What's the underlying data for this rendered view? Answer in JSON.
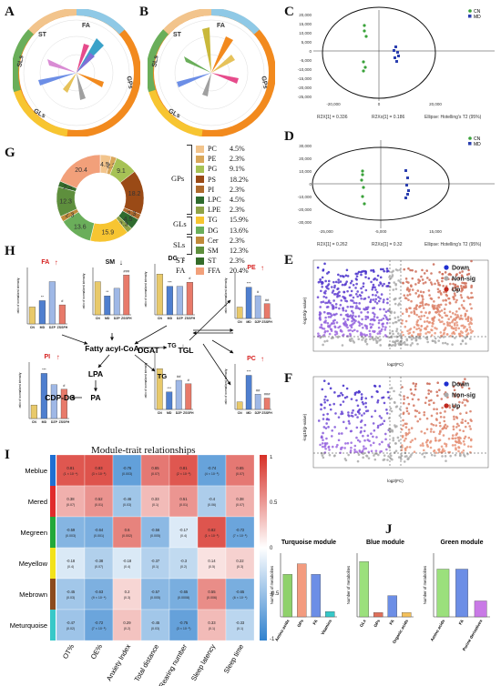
{
  "panels": {
    "A": "A",
    "B": "B",
    "C": "C",
    "D": "D",
    "E": "E",
    "F": "F",
    "G": "G",
    "H": "H",
    "I": "I",
    "J": "J"
  },
  "rose_labels": {
    "fa": "FA",
    "st": "ST",
    "sls": "SLs",
    "gps": "GPs",
    "gls": "GLs"
  },
  "pca_C": {
    "legend": [
      "CN",
      "MD"
    ],
    "footer": [
      "R2X[1] = 0.336",
      "R2Xo[1] = 0.186",
      "Ellipse: Hotelling's T2 (95%)"
    ],
    "yticks": [
      "20,000",
      "15,000",
      "10,000",
      "5,000",
      "0",
      "-5,000",
      "-10,000",
      "-15,000",
      "-20,000",
      "-25,000"
    ],
    "xticks": [
      "-20,000",
      "0",
      "20,000"
    ]
  },
  "pca_D": {
    "legend": [
      "CN",
      "MD"
    ],
    "footer": [
      "R2X[1] = 0.262",
      "R2Xo[1] = 0.32",
      "Ellipse: Hotelling's T2 (95%)"
    ],
    "yticks": [
      "30,000",
      "20,000",
      "10,000",
      "0",
      "-10,000",
      "-20,000",
      "-30,000"
    ],
    "xticks": [
      "-25,000",
      "-5,000",
      "15,000"
    ]
  },
  "volcano": {
    "legend": [
      "Down",
      "Non-sig",
      "Up"
    ],
    "xlabel": "log2(FC)",
    "ylabel": "-log10(p-value)"
  },
  "donut": {
    "values": [
      4.5,
      2.3,
      9.1,
      18.2,
      2.3,
      4.5,
      2.3,
      15.9,
      13.6,
      2.3,
      12.3,
      2.3,
      20.4
    ],
    "labels_shown": [
      "4.5",
      "2.3",
      "9.1",
      "18.2",
      "2.3",
      "4.5",
      "2.3",
      "15.9",
      "13.6",
      "2.3",
      "12.3",
      "2.3",
      "20.4"
    ],
    "colors": [
      "#f2c48c",
      "#d9a75a",
      "#a6c255",
      "#9a4a16",
      "#ad6a2d",
      "#2f6b2e",
      "#8fa348",
      "#f7c531",
      "#6aae5a",
      "#c08a3a",
      "#5e8f3d",
      "#356c2a",
      "#f2a07a"
    ],
    "legend": [
      {
        "name": "PC",
        "pct": "4.5%"
      },
      {
        "name": "PE",
        "pct": "2.3%"
      },
      {
        "name": "PG",
        "pct": "9.1%"
      },
      {
        "name": "PS",
        "pct": "18.2%"
      },
      {
        "name": "PI",
        "pct": "2.3%"
      },
      {
        "name": "LPC",
        "pct": "4.5%"
      },
      {
        "name": "LPE",
        "pct": "2.3%"
      },
      {
        "name": "TG",
        "pct": "15.9%"
      },
      {
        "name": "DG",
        "pct": "13.6%"
      },
      {
        "name": "Cer",
        "pct": "2.3%"
      },
      {
        "name": "SM",
        "pct": "12.3%"
      },
      {
        "name": "ST",
        "pct": "2.3%"
      },
      {
        "name": "FFA",
        "pct": "20.4%"
      }
    ],
    "classes": [
      "GPs",
      "GLs",
      "SLs",
      "ST",
      "FA"
    ]
  },
  "pathway": {
    "groups": [
      "CN",
      "MD",
      "DZP",
      "ZSSFH"
    ],
    "group_colors": [
      "#e8c96a",
      "#4f7fcf",
      "#9fb8e6",
      "#e87a6a"
    ],
    "ylabel": "ratio of normalized intensity",
    "nodes": {
      "fatty": "Fatty acyl-CoA",
      "lpa": "LPA",
      "pa": "PA",
      "cdp": "CDP-DG",
      "dgat": "DGAT",
      "tgl": "TGL",
      "tg": "TG"
    },
    "fa": {
      "label": "FA",
      "values": [
        24,
        33,
        60,
        27
      ],
      "stars": [
        "",
        "**",
        "",
        "#"
      ],
      "ylim": [
        0,
        80
      ]
    },
    "sm": {
      "label": "SM",
      "values": [
        0.35,
        0.2,
        0.28,
        0.42
      ],
      "stars": [
        "",
        "**",
        "",
        "###"
      ],
      "ylim": [
        0,
        0.5
      ]
    },
    "dg": {
      "label": "DG",
      "values": [
        20,
        14,
        14,
        16
      ],
      "stars": [
        "",
        "***",
        "",
        "#"
      ],
      "ylim": [
        0,
        25
      ]
    },
    "pe": {
      "label": "PE",
      "values": [
        2.0,
        5.5,
        4.0,
        2.6
      ],
      "stars": [
        "",
        "***",
        "#",
        "##"
      ],
      "ylim": [
        0,
        8
      ]
    },
    "pi": {
      "label": "PI",
      "values": [
        6,
        20,
        15,
        13
      ],
      "stars": [
        "",
        "***",
        "",
        "#"
      ],
      "ylim": [
        0,
        25
      ]
    },
    "tg": {
      "label": "TG",
      "values": [
        35,
        15,
        25,
        22
      ],
      "stars": [
        "",
        "***",
        "##",
        "#"
      ],
      "ylim": [
        0,
        50
      ]
    },
    "pc": {
      "label": "PC",
      "values": [
        2,
        9,
        4,
        3
      ],
      "stars": [
        "",
        "***",
        "##",
        "###"
      ],
      "ylim": [
        0,
        12
      ]
    }
  },
  "heatmap": {
    "title": "Module-trait relationships",
    "rows": [
      "Meblue",
      "Mered",
      "Megreen",
      "Meyellow",
      "Mebrown",
      "Meturquoise"
    ],
    "row_colors": [
      "#1f6fd1",
      "#e02b2b",
      "#22a83a",
      "#f2e21a",
      "#8b4b1e",
      "#38c8c8"
    ],
    "cols": [
      "OT%",
      "OE%",
      "Anxiety Index",
      "Total distance",
      "Rearing number",
      "Sleep latency",
      "Sleep time"
    ],
    "corr": [
      [
        0.81,
        0.83,
        -0.76,
        0.65,
        0.81,
        -0.74,
        0.65
      ],
      [
        0.38,
        0.52,
        -0.46,
        0.33,
        0.51,
        -0.4,
        0.38
      ],
      [
        -0.59,
        -0.64,
        0.6,
        -0.56,
        -0.17,
        0.82,
        -0.72
      ],
      [
        -0.18,
        -0.38,
        -0.18,
        -0.37,
        -0.3,
        0.14,
        0.22
      ],
      [
        -0.45,
        -0.63,
        0.2,
        -0.57,
        -0.65,
        0.55,
        -0.65
      ],
      [
        -0.47,
        -0.72,
        0.29,
        -0.45,
        -0.75,
        0.33,
        -0.33
      ]
    ],
    "pvals": [
      [
        "(1 × 10⁻⁴)",
        "(3 × 10⁻⁵)",
        "(0.003)",
        "(0.07)",
        "(2 × 10⁻⁵)",
        "(4 × 10⁻⁶)",
        "(0.07)"
      ],
      [
        "(0.07)",
        "(0.01)",
        "(0.03)",
        "(0.1)",
        "(0.01)",
        "(0.06)",
        "(0.07)"
      ],
      [
        "(0.003)",
        "(0.001)",
        "(0.002)",
        "(0.005)",
        "(0.4)",
        "(1 × 10⁻⁶)",
        "(7 × 10⁻⁵)"
      ],
      [
        "(0.4)",
        "(0.07)",
        "(0.4)",
        "(0.1)",
        "(0.2)",
        "(0.5)",
        "(0.3)"
      ],
      [
        "(0.03)",
        "(9 × 10⁻⁴)",
        "(0.3)",
        "(0.005)",
        "(0.0008)",
        "(0.006)",
        "(6 × 10⁻⁴)"
      ],
      [
        "(0.02)",
        "(7 × 10⁻⁵)",
        "(0.2)",
        "(0.03)",
        "(3 × 10⁻⁵)",
        "(0.1)",
        "(0.1)"
      ]
    ],
    "scale_ticks": [
      "1",
      "0.5",
      "0",
      "-0.5",
      "-1"
    ]
  },
  "modules": [
    {
      "title": "Turquoise module",
      "ylabel": "Number of metabolites",
      "categories": [
        "Amino acids",
        "GPs",
        "FA",
        "Vitamins"
      ],
      "values": [
        8,
        10,
        8,
        1
      ],
      "colors": [
        "#8fd16b",
        "#f39b7f",
        "#6c8ee6",
        "#36c8c8"
      ],
      "ylim": [
        0,
        12
      ]
    },
    {
      "title": "Blue module",
      "ylabel": "Number of metabolites",
      "categories": [
        "GLs",
        "GPs",
        "FA",
        "Organic acids"
      ],
      "values": [
        13,
        1,
        5,
        1
      ],
      "colors": [
        "#9be07c",
        "#e0705a",
        "#6c8ee6",
        "#f4c05a"
      ],
      "ylim": [
        0,
        15
      ]
    },
    {
      "title": "Green module",
      "ylabel": "Number of metabolites",
      "categories": [
        "Amino acids",
        "FA",
        "Purine derivatives"
      ],
      "values": [
        3,
        3,
        1
      ],
      "colors": [
        "#9be07c",
        "#6c8ee6",
        "#c97ae6"
      ],
      "ylim": [
        0,
        4
      ]
    }
  ]
}
